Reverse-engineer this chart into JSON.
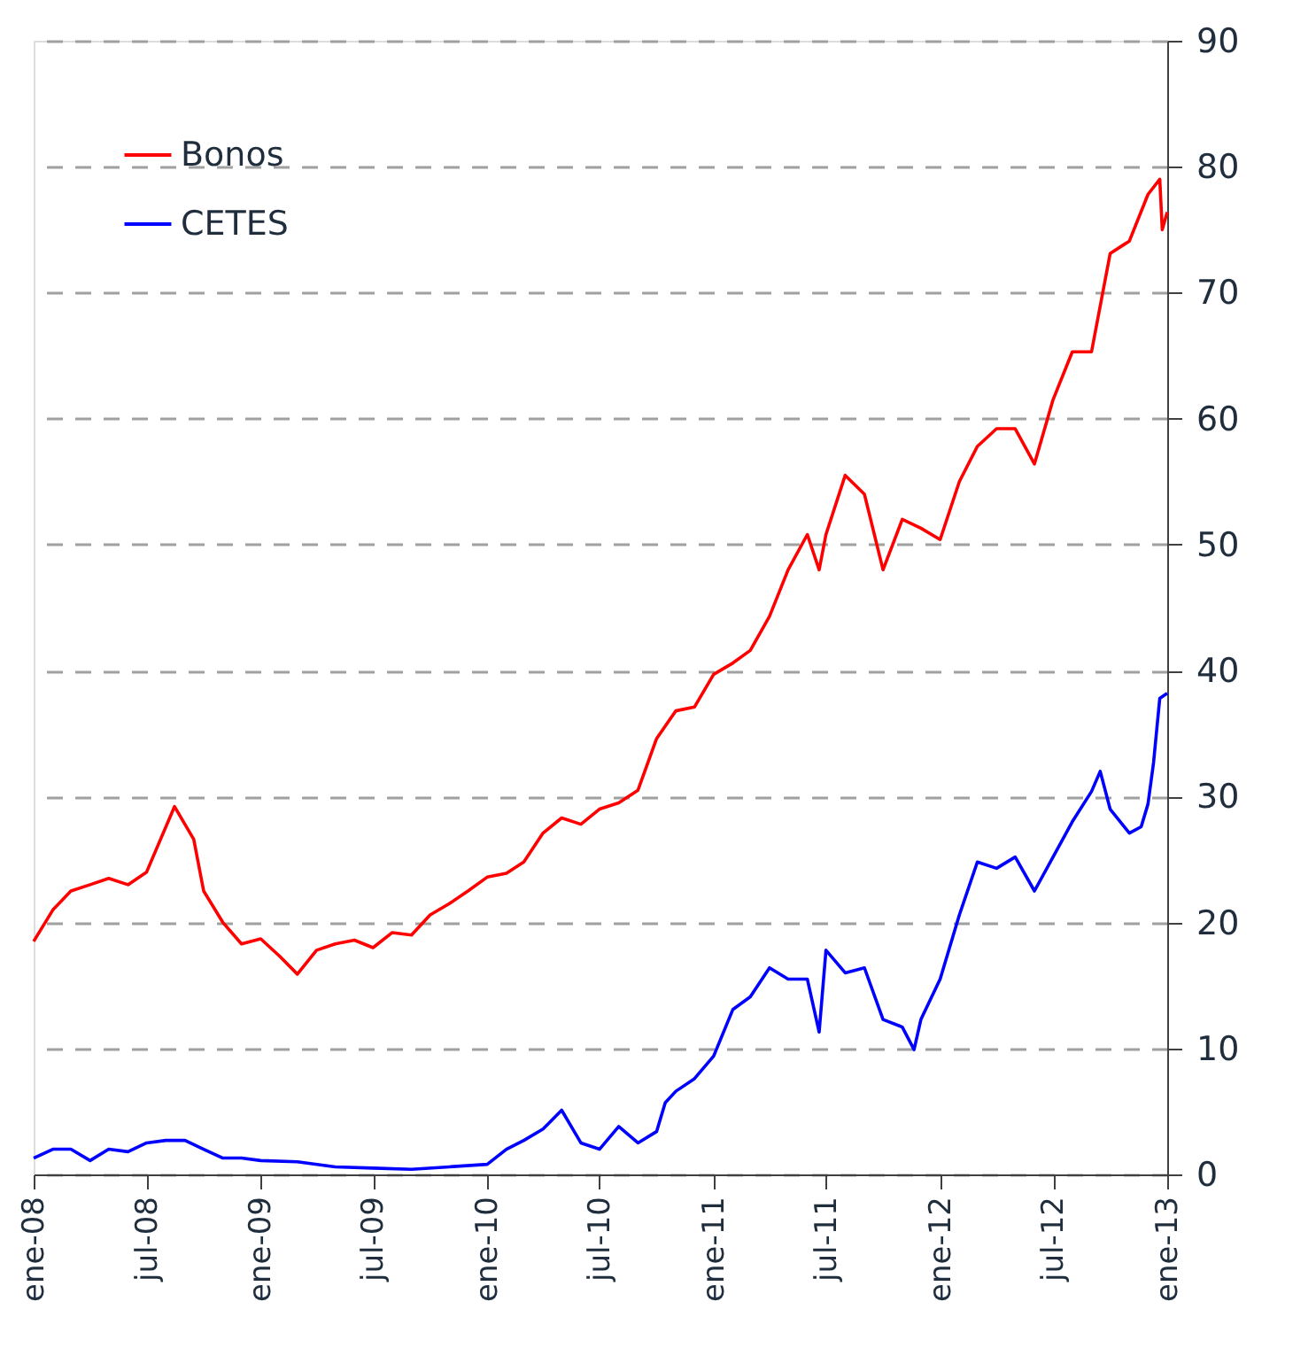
{
  "chart_data": {
    "type": "line",
    "xlim": [
      "2008-01-01",
      "2013-01-01"
    ],
    "xticks": [
      {
        "value": "2008-01-01",
        "label": "ene-08"
      },
      {
        "value": "2008-07-01",
        "label": "jul-08"
      },
      {
        "value": "2009-01-01",
        "label": "ene-09"
      },
      {
        "value": "2009-07-01",
        "label": "jul-09"
      },
      {
        "value": "2010-01-01",
        "label": "ene-10"
      },
      {
        "value": "2010-07-01",
        "label": "jul-10"
      },
      {
        "value": "2011-01-01",
        "label": "ene-11"
      },
      {
        "value": "2011-07-01",
        "label": "jul-11"
      },
      {
        "value": "2012-01-01",
        "label": "ene-12"
      },
      {
        "value": "2012-07-01",
        "label": "jul-12"
      },
      {
        "value": "2013-01-01",
        "label": "ene-13"
      }
    ],
    "ylim": [
      0,
      90
    ],
    "yticks": [
      0,
      10,
      20,
      30,
      40,
      50,
      60,
      70,
      80,
      90
    ],
    "grid": "y",
    "legend": "top left",
    "marker": "none",
    "line_style": "solid",
    "series": [
      {
        "name": "Bonos",
        "color": "#ff0000",
        "x": [
          "2008-01-01",
          "2008-02-01",
          "2008-03-01",
          "2008-04-01",
          "2008-05-01",
          "2008-06-01",
          "2008-07-01",
          "2008-08-15",
          "2008-09-15",
          "2008-10-01",
          "2008-11-01",
          "2008-12-01",
          "2009-01-01",
          "2009-02-01",
          "2009-03-01",
          "2009-04-01",
          "2009-05-01",
          "2009-06-01",
          "2009-07-01",
          "2009-08-01",
          "2009-09-01",
          "2009-10-01",
          "2009-11-01",
          "2009-12-01",
          "2010-01-01",
          "2010-02-01",
          "2010-03-01",
          "2010-04-01",
          "2010-05-01",
          "2010-06-01",
          "2010-07-01",
          "2010-08-01",
          "2010-09-01",
          "2010-10-01",
          "2010-11-01",
          "2010-12-01",
          "2011-01-01",
          "2011-02-01",
          "2011-03-01",
          "2011-04-01",
          "2011-05-01",
          "2011-06-01",
          "2011-06-20",
          "2011-07-01",
          "2011-08-01",
          "2011-09-01",
          "2011-10-01",
          "2011-11-01",
          "2011-12-01",
          "2012-01-01",
          "2012-02-01",
          "2012-03-01",
          "2012-04-01",
          "2012-05-01",
          "2012-06-01",
          "2012-07-01",
          "2012-08-01",
          "2012-09-01",
          "2012-10-01",
          "2012-11-01",
          "2012-12-01",
          "2012-12-20",
          "2012-12-24",
          "2013-01-01"
        ],
        "values": [
          18.5,
          21,
          22.5,
          23,
          23.5,
          23,
          24,
          29.2,
          26.6,
          22.5,
          20,
          18.3,
          18.7,
          17.3,
          15.9,
          17.8,
          18.3,
          18.6,
          18,
          19.2,
          19,
          20.6,
          21.5,
          22.5,
          23.6,
          23.9,
          24.8,
          27.1,
          28.3,
          27.8,
          29,
          29.5,
          30.5,
          34.6,
          36.8,
          37.1,
          39.7,
          40.6,
          41.6,
          44.3,
          48,
          50.8,
          48,
          50.8,
          55.5,
          54,
          48,
          52,
          51.3,
          50.4,
          55,
          57.8,
          59.2,
          59.2,
          56.4,
          61.5,
          65.3,
          65.3,
          73.1,
          74.1,
          77.8,
          79,
          75,
          76.4
        ]
      },
      {
        "name": "CETES",
        "color": "#0000ff",
        "x": [
          "2008-01-01",
          "2008-02-01",
          "2008-03-01",
          "2008-04-01",
          "2008-05-01",
          "2008-06-01",
          "2008-07-01",
          "2008-08-01",
          "2008-09-01",
          "2008-10-01",
          "2008-11-01",
          "2008-12-01",
          "2009-01-01",
          "2009-03-01",
          "2009-05-01",
          "2009-07-01",
          "2009-09-01",
          "2009-11-01",
          "2010-01-01",
          "2010-02-01",
          "2010-03-01",
          "2010-04-01",
          "2010-05-01",
          "2010-06-01",
          "2010-07-01",
          "2010-08-01",
          "2010-09-01",
          "2010-10-01",
          "2010-10-15",
          "2010-11-01",
          "2010-12-01",
          "2011-01-01",
          "2011-02-01",
          "2011-03-01",
          "2011-04-01",
          "2011-05-01",
          "2011-06-01",
          "2011-06-20",
          "2011-07-01",
          "2011-08-01",
          "2011-09-01",
          "2011-10-01",
          "2011-11-01",
          "2011-11-20",
          "2011-12-01",
          "2012-01-01",
          "2012-02-01",
          "2012-03-01",
          "2012-04-01",
          "2012-05-01",
          "2012-06-01",
          "2012-07-01",
          "2012-08-01",
          "2012-09-01",
          "2012-09-15",
          "2012-10-01",
          "2012-11-01",
          "2012-11-20",
          "2012-12-01",
          "2012-12-10",
          "2012-12-20",
          "2013-01-01"
        ],
        "values": [
          1.3,
          2,
          2,
          1.1,
          2,
          1.8,
          2.5,
          2.7,
          2.7,
          2,
          1.3,
          1.3,
          1.1,
          1,
          0.6,
          0.5,
          0.4,
          0.6,
          0.8,
          2,
          2.7,
          3.6,
          5.1,
          2.5,
          2,
          3.8,
          2.5,
          3.4,
          5.7,
          6.6,
          7.6,
          9.4,
          13.1,
          14.1,
          16.4,
          15.5,
          15.5,
          11.3,
          17.8,
          16,
          16.4,
          12.3,
          11.7,
          9.9,
          12.3,
          15.5,
          20.6,
          24.8,
          24.3,
          25.2,
          22.5,
          25.2,
          28,
          30.4,
          32,
          29,
          27.1,
          27.6,
          29.4,
          32.7,
          37.8,
          38.2
        ]
      }
    ]
  }
}
